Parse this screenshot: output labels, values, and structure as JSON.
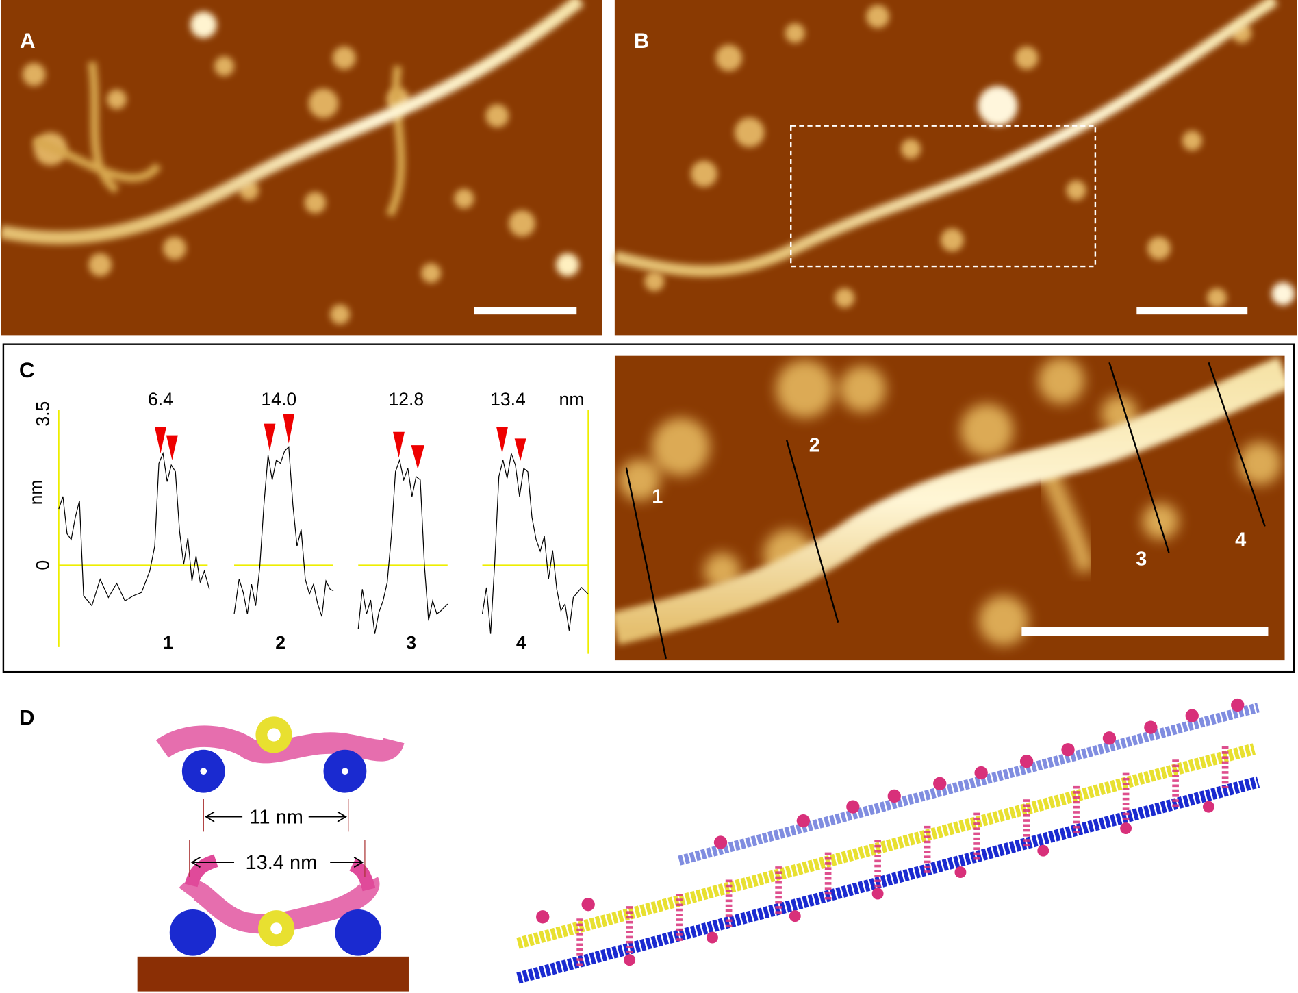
{
  "panels": {
    "a": {
      "label": "A"
    },
    "b": {
      "label": "B"
    },
    "c": {
      "label": "C",
      "profiles": {
        "widths": [
          "6.4",
          "14.0",
          "12.8",
          "13.4"
        ],
        "width_unit": "nm",
        "y_unit": "nm",
        "y_top": "3.5",
        "y_zero": "0",
        "numbers": [
          "1",
          "2",
          "3",
          "4"
        ]
      },
      "image_lines": [
        "1",
        "2",
        "3",
        "4"
      ]
    },
    "d": {
      "label": "D",
      "dimensions": [
        "11 nm",
        "13.4 nm"
      ]
    }
  }
}
